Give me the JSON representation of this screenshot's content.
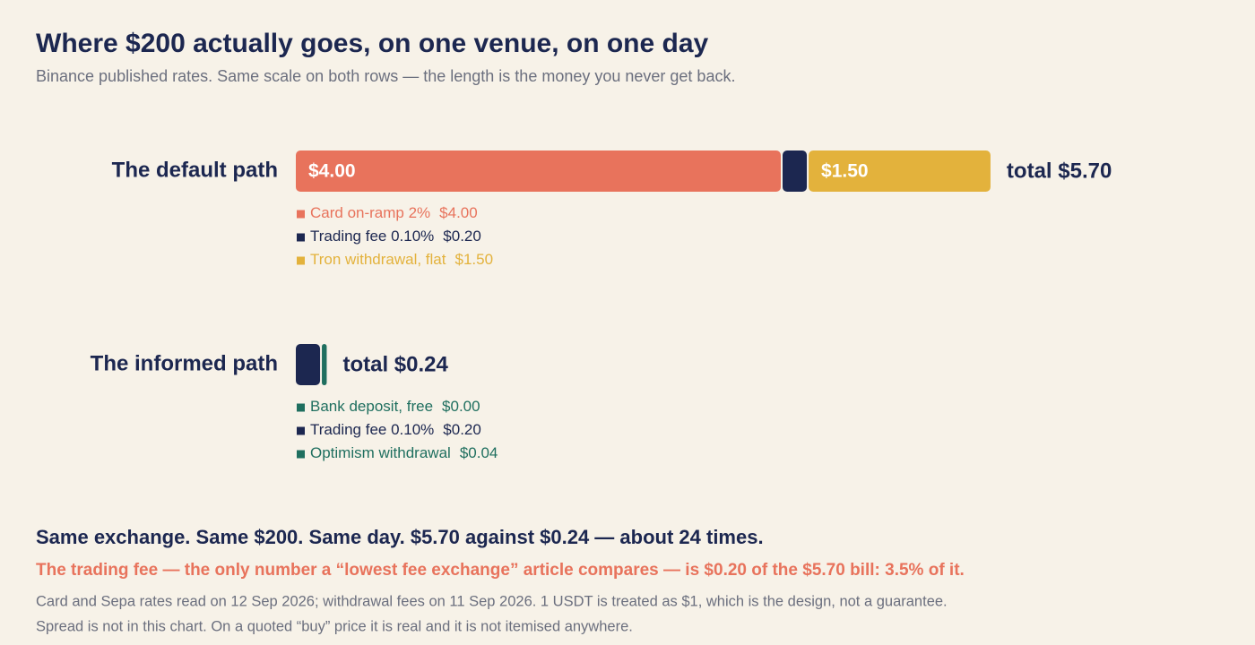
{
  "chart_data": {
    "type": "stacked-bar-horizontal",
    "title": "Where $200 actually goes, on one venue, on one day",
    "subtitle": "Binance published rates. Same scale on both rows — the length is the money you never get back.",
    "rows": [
      {
        "label": "The default path",
        "total_label": "total $5.70",
        "names": [
          "Card on-ramp 2%",
          "Trading fee 0.10%",
          "Tron withdrawal, flat"
        ],
        "values": [
          4.0,
          0.2,
          1.5
        ],
        "value_labels": [
          "$4.00",
          "$0.20",
          "$1.50"
        ],
        "colors": [
          "#e8735c",
          "#1c2750",
          "#e3b23c"
        ]
      },
      {
        "label": "The informed path",
        "total_label": "total $0.24",
        "names": [
          "Bank deposit, free",
          "Trading fee 0.10%",
          "Optimism withdrawal"
        ],
        "values": [
          0.0,
          0.2,
          0.04
        ],
        "value_labels": [
          "$0.00",
          "$0.20",
          "$0.04"
        ],
        "colors": [
          "#1f6f5f",
          "#1c2750",
          "#1f6f5f"
        ]
      }
    ],
    "headline": "Same exchange. Same $200. Same day. $5.70 against $0.24 — about 24 times.",
    "highlight": "The trading fee — the only number a “lowest fee exchange” article compares — is $0.20 of the $5.70 bill: 3.5% of it.",
    "notes": [
      "Card and Sepa rates read on 12 Sep 2026; withdrawal fees on 11 Sep 2026. 1 USDT is treated as $1, which is the design, not a guarantee.",
      "Spread is not in this chart. On a quoted “buy” price it is real and it is not itemised anywhere."
    ]
  }
}
